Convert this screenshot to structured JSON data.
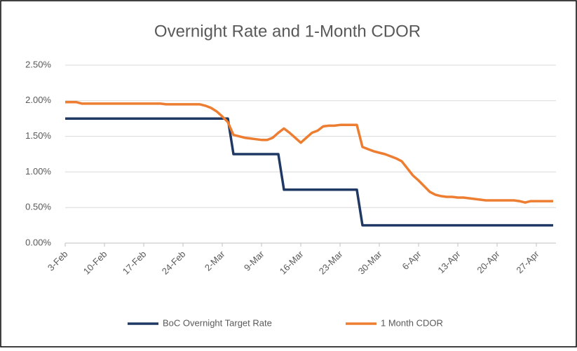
{
  "chart_data": {
    "type": "line",
    "title": "Overnight Rate and 1-Month CDOR",
    "categories": [
      "3-Feb",
      null,
      null,
      null,
      null,
      null,
      null,
      "10-Feb",
      null,
      null,
      null,
      null,
      null,
      null,
      "17-Feb",
      null,
      null,
      null,
      null,
      null,
      null,
      "24-Feb",
      null,
      null,
      null,
      null,
      null,
      null,
      "2-Mar",
      null,
      null,
      null,
      null,
      null,
      null,
      "9-Mar",
      null,
      null,
      null,
      null,
      null,
      null,
      "16-Mar",
      null,
      null,
      null,
      null,
      null,
      null,
      "23-Mar",
      null,
      null,
      null,
      null,
      null,
      null,
      "30-Mar",
      null,
      null,
      null,
      null,
      null,
      null,
      "6-Apr",
      null,
      null,
      null,
      null,
      null,
      null,
      "13-Apr",
      null,
      null,
      null,
      null,
      null,
      null,
      "20-Apr",
      null,
      null,
      null,
      null,
      null,
      null,
      "27-Apr",
      null,
      null,
      null
    ],
    "series": [
      {
        "name": "BoC Overnight Target Rate",
        "color": "#1f3864",
        "values": [
          1.75,
          1.75,
          1.75,
          1.75,
          1.75,
          1.75,
          1.75,
          1.75,
          1.75,
          1.75,
          1.75,
          1.75,
          1.75,
          1.75,
          1.75,
          1.75,
          1.75,
          1.75,
          1.75,
          1.75,
          1.75,
          1.75,
          1.75,
          1.75,
          1.75,
          1.75,
          1.75,
          1.75,
          1.75,
          1.75,
          1.25,
          1.25,
          1.25,
          1.25,
          1.25,
          1.25,
          1.25,
          1.25,
          1.25,
          0.75,
          0.75,
          0.75,
          0.75,
          0.75,
          0.75,
          0.75,
          0.75,
          0.75,
          0.75,
          0.75,
          0.75,
          0.75,
          0.75,
          0.25,
          0.25,
          0.25,
          0.25,
          0.25,
          0.25,
          0.25,
          0.25,
          0.25,
          0.25,
          0.25,
          0.25,
          0.25,
          0.25,
          0.25,
          0.25,
          0.25,
          0.25,
          0.25,
          0.25,
          0.25,
          0.25,
          0.25,
          0.25,
          0.25,
          0.25,
          0.25,
          0.25,
          0.25,
          0.25,
          0.25,
          0.25,
          0.25,
          0.25,
          0.25
        ]
      },
      {
        "name": "1 Month CDOR",
        "color": "#ed7d31",
        "values": [
          1.98,
          1.98,
          1.98,
          1.96,
          1.96,
          1.96,
          1.96,
          1.96,
          1.96,
          1.96,
          1.96,
          1.96,
          1.96,
          1.96,
          1.96,
          1.96,
          1.96,
          1.96,
          1.95,
          1.95,
          1.95,
          1.95,
          1.95,
          1.95,
          1.95,
          1.93,
          1.9,
          1.85,
          1.78,
          1.7,
          1.52,
          1.5,
          1.48,
          1.47,
          1.46,
          1.45,
          1.45,
          1.48,
          1.55,
          1.61,
          1.55,
          1.48,
          1.41,
          1.48,
          1.55,
          1.58,
          1.64,
          1.65,
          1.65,
          1.66,
          1.66,
          1.66,
          1.66,
          1.35,
          1.32,
          1.29,
          1.27,
          1.25,
          1.22,
          1.19,
          1.15,
          1.05,
          0.95,
          0.88,
          0.8,
          0.72,
          0.68,
          0.66,
          0.65,
          0.65,
          0.64,
          0.64,
          0.63,
          0.62,
          0.61,
          0.6,
          0.6,
          0.6,
          0.6,
          0.6,
          0.6,
          0.59,
          0.57,
          0.59,
          0.59,
          0.59,
          0.59,
          0.59
        ]
      }
    ],
    "ylim": [
      0,
      2.5
    ],
    "yticks": [
      {
        "value": 0,
        "label": "0.00%"
      },
      {
        "value": 0.5,
        "label": "0.50%"
      },
      {
        "value": 1,
        "label": "1.00%"
      },
      {
        "value": 1.5,
        "label": "1.50%"
      },
      {
        "value": 2,
        "label": "2.00%"
      },
      {
        "value": 2.5,
        "label": "2.50%"
      }
    ],
    "grid": true,
    "legend": "bottom"
  }
}
